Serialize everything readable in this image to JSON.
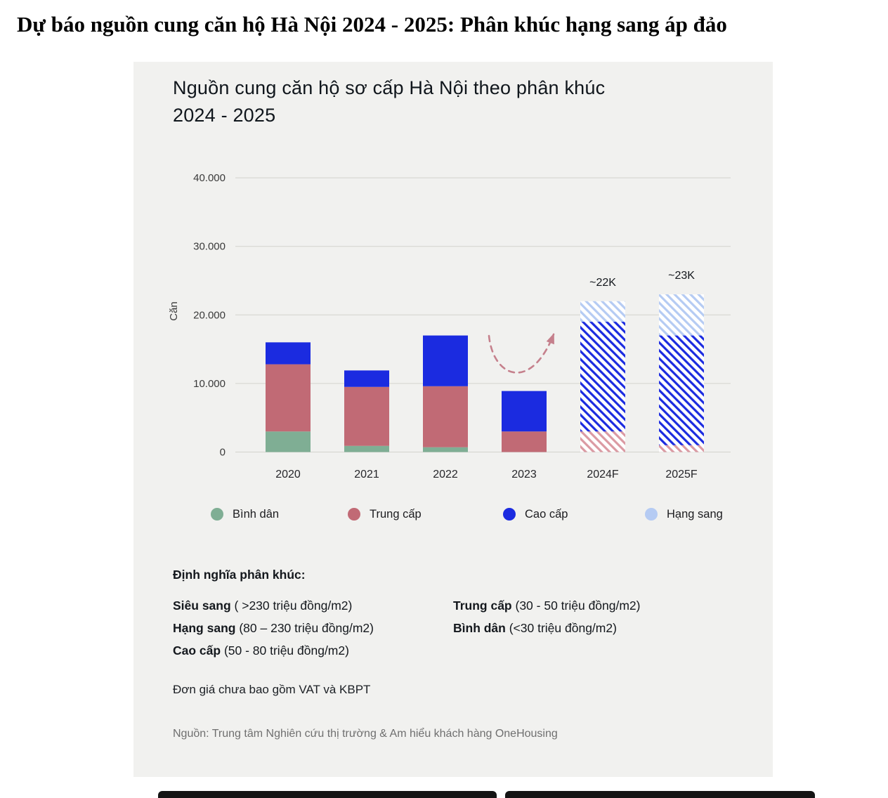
{
  "page": {
    "headline": "Dự báo nguồn cung căn hộ Hà Nội 2024 - 2025: Phân khúc hạng sang áp đảo"
  },
  "card": {
    "title": "Nguồn cung căn hộ sơ cấp Hà Nội theo phân khúc 2024 - 2025",
    "definitions": {
      "heading": "Định nghĩa phân khúc:",
      "col1": [
        {
          "term": "Siêu sang",
          "desc": " ( >230 triệu đồng/m2)"
        },
        {
          "term": "Hạng sang",
          "desc": " (80 – 230 triệu đồng/m2)"
        },
        {
          "term": "Cao cấp",
          "desc": " (50 - 80 triệu đồng/m2)"
        }
      ],
      "col2": [
        {
          "term": "Trung cấp",
          "desc": " (30 - 50 triệu đồng/m2)"
        },
        {
          "term": "Bình dân",
          "desc": " (<30 triệu đồng/m2)"
        }
      ],
      "note": "Đơn giá chưa bao gồm VAT và KBPT"
    },
    "source": "Nguồn: Trung tâm Nghiên cứu thị trường & Am hiểu khách hàng OneHousing"
  },
  "chart_data": {
    "type": "bar",
    "stacked": true,
    "title": "Nguồn cung căn hộ sơ cấp Hà Nội theo phân khúc 2024 - 2025",
    "ylabel": "Căn",
    "xlabel": "",
    "ylim": [
      0,
      40000
    ],
    "yticks": [
      0,
      10000,
      20000,
      30000,
      40000
    ],
    "ytick_labels": [
      "0",
      "10.000",
      "20.000",
      "30.000",
      "40.000"
    ],
    "grid": true,
    "legend_position": "bottom",
    "categories": [
      "2020",
      "2021",
      "2022",
      "2023",
      "2024F",
      "2025F"
    ],
    "forecast_categories": [
      "2024F",
      "2025F"
    ],
    "series": [
      {
        "name": "Bình dân",
        "color": "#7FAE94",
        "hatch_color": "#7FAE94",
        "values": [
          3000,
          900,
          700,
          0,
          0,
          0
        ]
      },
      {
        "name": "Trung cấp",
        "color": "#C16A75",
        "hatch_color": "#DB9AA3",
        "values": [
          9800,
          8600,
          8900,
          3000,
          3000,
          1000
        ]
      },
      {
        "name": "Cao cấp",
        "color": "#1B2BE0",
        "hatch_color": "#1B2BE0",
        "values": [
          3200,
          2400,
          7400,
          5900,
          16000,
          16000
        ]
      },
      {
        "name": "Hạng sang",
        "color": "#B5CBF3",
        "hatch_color": "#B5CBF3",
        "values": [
          0,
          0,
          0,
          0,
          3000,
          6000
        ]
      }
    ],
    "totals": [
      16000,
      11900,
      17000,
      8900,
      22000,
      23000
    ],
    "annotations": [
      {
        "category": "2024F",
        "label": "~22K"
      },
      {
        "category": "2025F",
        "label": "~23K"
      }
    ],
    "legend": [
      "Bình dân",
      "Trung cấp",
      "Cao cấp",
      "Hạng sang"
    ],
    "colors": {
      "card_bg": "#f1f1ef",
      "grid": "#d2d2cd",
      "trend_arrow": "#C5808C"
    }
  }
}
